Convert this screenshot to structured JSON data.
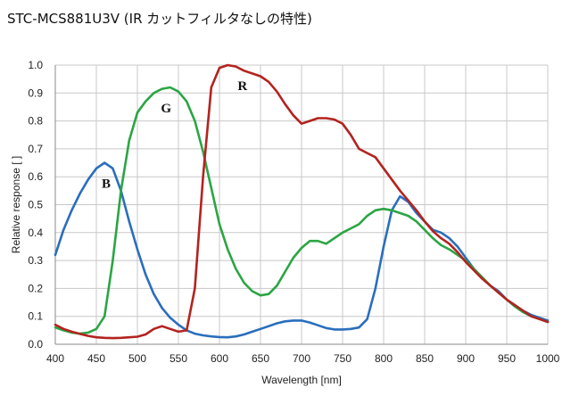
{
  "title": "STC-MCS881U3V (IR カットフィルタなしの特性)",
  "chart_data": {
    "type": "line",
    "title": "STC-MCS881U3V (IR カットフィルタなしの特性)",
    "xlabel": "Wavelength [nm]",
    "ylabel": "Relative response [ ]",
    "xlim": [
      400,
      1000
    ],
    "ylim": [
      0,
      1.0
    ],
    "xticks": [
      400,
      450,
      500,
      550,
      600,
      650,
      700,
      750,
      800,
      850,
      900,
      950,
      1000
    ],
    "xtick_labels": [
      "400",
      "450",
      "500",
      "550",
      "600",
      "650",
      "700",
      "750",
      "800",
      "850",
      "900",
      "950",
      "1000"
    ],
    "yticks": [
      0,
      0.1,
      0.2,
      0.3,
      0.4,
      0.5,
      0.6,
      0.7,
      0.8,
      0.9,
      1.0
    ],
    "ytick_labels": [
      "0.0",
      "0.1",
      "0.2",
      "0.3",
      "0.4",
      "0.5",
      "0.6",
      "0.7",
      "0.8",
      "0.9",
      "1.0"
    ],
    "grid": true,
    "legend": "inline labels",
    "series": [
      {
        "name": "B",
        "color": "#2a6ebd",
        "label_x": 462,
        "label_y": 0.56,
        "x": [
          400,
          410,
          420,
          430,
          440,
          450,
          460,
          470,
          480,
          490,
          500,
          510,
          520,
          530,
          540,
          550,
          560,
          570,
          580,
          590,
          600,
          610,
          620,
          630,
          640,
          650,
          660,
          670,
          680,
          690,
          700,
          710,
          720,
          730,
          740,
          750,
          760,
          770,
          780,
          790,
          800,
          810,
          820,
          830,
          840,
          850,
          860,
          870,
          880,
          890,
          900,
          910,
          920,
          930,
          940,
          950,
          960,
          970,
          980,
          990,
          1000
        ],
        "values": [
          0.32,
          0.41,
          0.48,
          0.54,
          0.59,
          0.63,
          0.65,
          0.63,
          0.55,
          0.44,
          0.34,
          0.25,
          0.18,
          0.13,
          0.095,
          0.07,
          0.05,
          0.038,
          0.032,
          0.028,
          0.026,
          0.025,
          0.028,
          0.035,
          0.045,
          0.055,
          0.065,
          0.075,
          0.082,
          0.085,
          0.085,
          0.078,
          0.068,
          0.058,
          0.053,
          0.053,
          0.055,
          0.06,
          0.09,
          0.2,
          0.35,
          0.48,
          0.53,
          0.51,
          0.47,
          0.44,
          0.41,
          0.4,
          0.38,
          0.35,
          0.31,
          0.27,
          0.24,
          0.21,
          0.19,
          0.16,
          0.14,
          0.12,
          0.105,
          0.095,
          0.085
        ]
      },
      {
        "name": "G",
        "color": "#2ba544",
        "label_x": 535,
        "label_y": 0.83,
        "x": [
          400,
          410,
          420,
          430,
          440,
          450,
          460,
          470,
          480,
          490,
          500,
          510,
          520,
          530,
          540,
          550,
          560,
          570,
          580,
          590,
          600,
          610,
          620,
          630,
          640,
          650,
          660,
          670,
          680,
          690,
          700,
          710,
          720,
          730,
          740,
          750,
          760,
          770,
          780,
          790,
          800,
          810,
          820,
          830,
          840,
          850,
          860,
          870,
          880,
          890,
          900,
          910,
          920,
          930,
          940,
          950,
          960,
          970,
          980,
          990,
          1000
        ],
        "values": [
          0.06,
          0.05,
          0.042,
          0.038,
          0.042,
          0.055,
          0.1,
          0.3,
          0.55,
          0.73,
          0.83,
          0.87,
          0.9,
          0.915,
          0.92,
          0.905,
          0.87,
          0.8,
          0.69,
          0.56,
          0.43,
          0.34,
          0.27,
          0.22,
          0.19,
          0.175,
          0.18,
          0.21,
          0.26,
          0.31,
          0.345,
          0.37,
          0.37,
          0.36,
          0.38,
          0.4,
          0.415,
          0.43,
          0.46,
          0.48,
          0.485,
          0.48,
          0.47,
          0.46,
          0.44,
          0.41,
          0.38,
          0.355,
          0.34,
          0.32,
          0.3,
          0.27,
          0.24,
          0.21,
          0.185,
          0.16,
          0.135,
          0.115,
          0.1,
          0.09,
          0.08
        ]
      },
      {
        "name": "R",
        "color": "#b3231f",
        "label_x": 628,
        "label_y": 0.91,
        "x": [
          400,
          410,
          420,
          430,
          440,
          450,
          460,
          470,
          480,
          490,
          500,
          510,
          520,
          530,
          540,
          550,
          560,
          570,
          580,
          590,
          600,
          610,
          620,
          630,
          640,
          650,
          660,
          670,
          680,
          690,
          700,
          710,
          720,
          730,
          740,
          750,
          760,
          770,
          780,
          790,
          800,
          810,
          820,
          830,
          840,
          850,
          860,
          870,
          880,
          890,
          900,
          910,
          920,
          930,
          940,
          950,
          960,
          970,
          980,
          990,
          1000
        ],
        "values": [
          0.07,
          0.055,
          0.045,
          0.037,
          0.03,
          0.025,
          0.023,
          0.022,
          0.023,
          0.025,
          0.027,
          0.035,
          0.055,
          0.065,
          0.055,
          0.045,
          0.05,
          0.2,
          0.6,
          0.92,
          0.99,
          1.0,
          0.995,
          0.98,
          0.97,
          0.96,
          0.94,
          0.905,
          0.86,
          0.82,
          0.79,
          0.8,
          0.81,
          0.81,
          0.805,
          0.79,
          0.75,
          0.7,
          0.685,
          0.67,
          0.63,
          0.59,
          0.55,
          0.515,
          0.48,
          0.44,
          0.405,
          0.38,
          0.36,
          0.33,
          0.295,
          0.265,
          0.235,
          0.21,
          0.185,
          0.16,
          0.14,
          0.12,
          0.1,
          0.09,
          0.08
        ]
      }
    ]
  }
}
